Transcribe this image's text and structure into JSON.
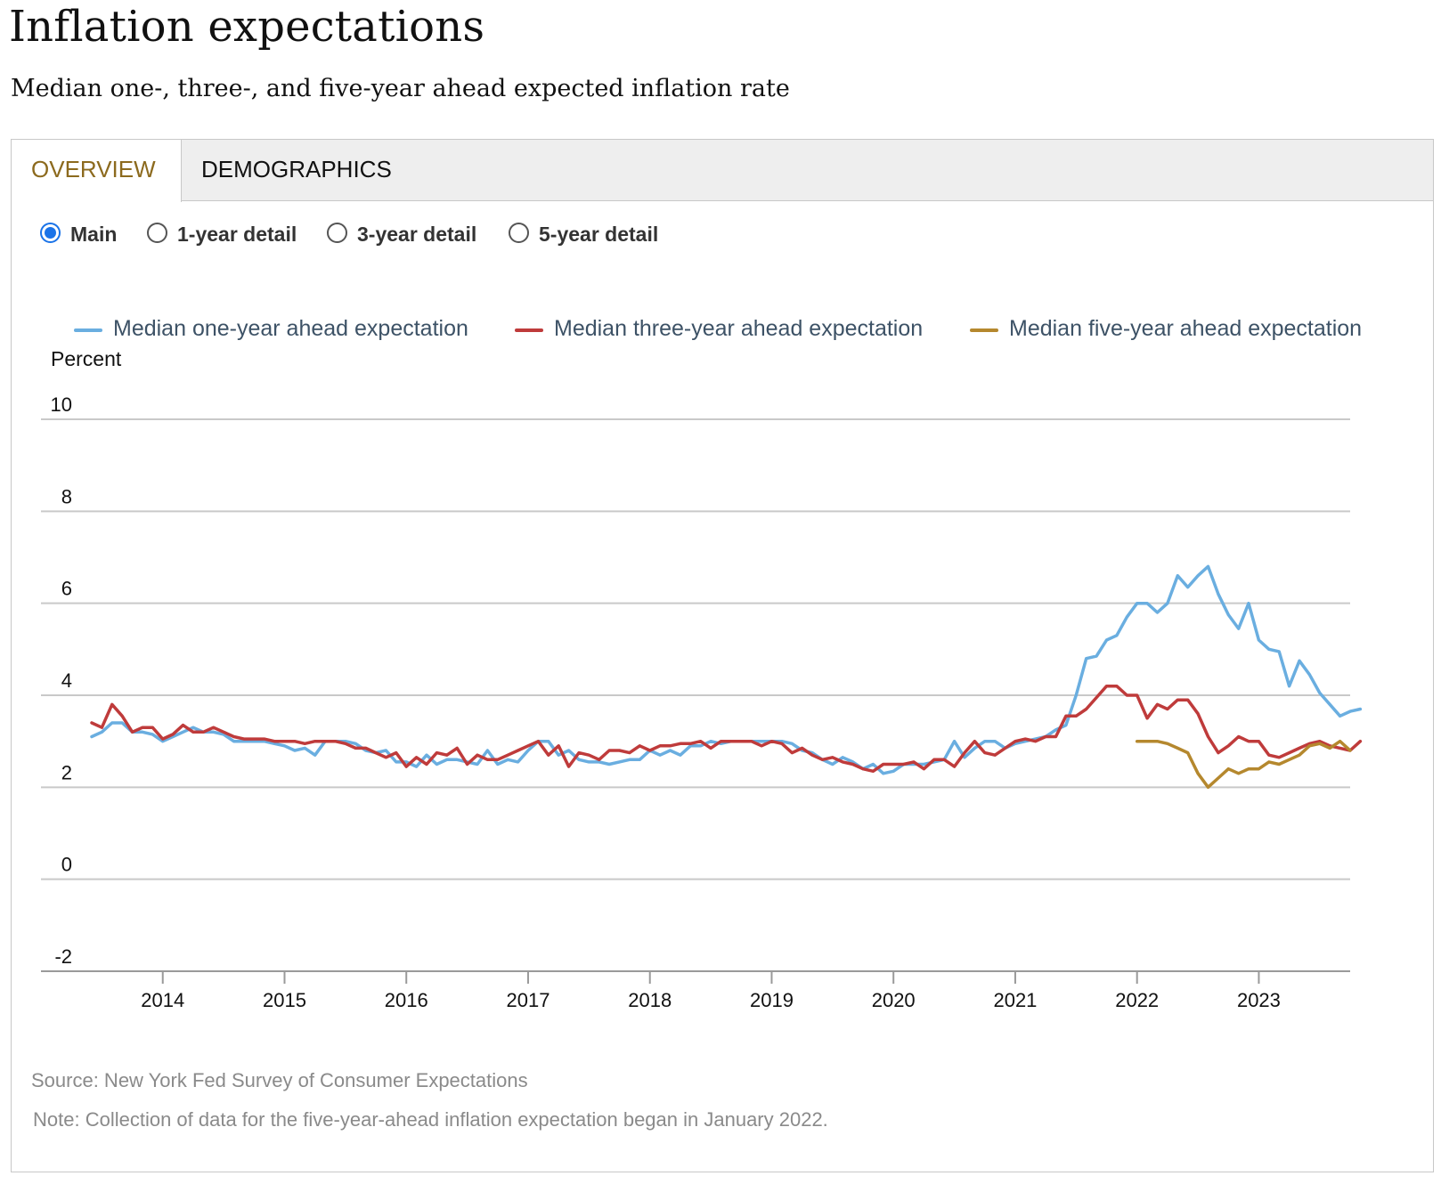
{
  "header": {
    "title": "Inflation expectations",
    "subtitle": "Median one-, three-, and five-year ahead expected inflation rate"
  },
  "tabs": [
    {
      "label": "OVERVIEW",
      "active": true
    },
    {
      "label": "DEMOGRAPHICS",
      "active": false
    }
  ],
  "radios": [
    {
      "label": "Main",
      "checked": true
    },
    {
      "label": "1-year detail",
      "checked": false
    },
    {
      "label": "3-year detail",
      "checked": false
    },
    {
      "label": "5-year detail",
      "checked": false
    }
  ],
  "footer": {
    "source": "Source: New York Fed Survey of Consumer Expectations",
    "note": "Note: Collection of data for the five-year-ahead inflation expectation began in January 2022."
  },
  "chart_data": {
    "type": "line",
    "ylabel": "Percent",
    "ylim": [
      -2,
      10
    ],
    "yticks": [
      -2,
      0,
      2,
      4,
      6,
      8,
      10
    ],
    "xlim": [
      2013.0,
      2023.75
    ],
    "xticks": [
      "2014",
      "2015",
      "2016",
      "2017",
      "2018",
      "2019",
      "2020",
      "2021",
      "2022",
      "2023"
    ],
    "grid": true,
    "legend_position": "top",
    "series": [
      {
        "name": "Median one-year ahead expectation",
        "color": "#6aaee0",
        "start": "2013-06",
        "values": [
          3.1,
          3.2,
          3.4,
          3.4,
          3.2,
          3.2,
          3.15,
          3.0,
          3.1,
          3.2,
          3.3,
          3.2,
          3.2,
          3.15,
          3.0,
          3.0,
          3.0,
          3.0,
          2.95,
          2.9,
          2.8,
          2.85,
          2.7,
          3.0,
          3.0,
          3.0,
          2.95,
          2.8,
          2.75,
          2.8,
          2.55,
          2.55,
          2.45,
          2.7,
          2.5,
          2.6,
          2.6,
          2.55,
          2.5,
          2.8,
          2.5,
          2.6,
          2.55,
          2.8,
          3.0,
          3.0,
          2.7,
          2.8,
          2.6,
          2.55,
          2.55,
          2.5,
          2.55,
          2.6,
          2.6,
          2.8,
          2.7,
          2.8,
          2.7,
          2.9,
          2.9,
          3.0,
          2.95,
          3.0,
          3.0,
          3.0,
          3.0,
          3.0,
          3.0,
          2.95,
          2.8,
          2.75,
          2.6,
          2.5,
          2.65,
          2.55,
          2.4,
          2.5,
          2.3,
          2.35,
          2.5,
          2.5,
          2.5,
          2.55,
          2.6,
          3.0,
          2.65,
          2.85,
          3.0,
          3.0,
          2.85,
          2.95,
          3.0,
          3.05,
          3.1,
          3.25,
          3.35,
          4.0,
          4.8,
          4.85,
          5.2,
          5.3,
          5.7,
          6.0,
          6.0,
          5.8,
          6.0,
          6.6,
          6.35,
          6.6,
          6.8,
          6.2,
          5.75,
          5.45,
          6.0,
          5.2,
          5.0,
          4.95,
          4.2,
          4.75,
          4.45,
          4.05,
          3.8,
          3.55,
          3.65,
          3.7
        ]
      },
      {
        "name": "Median three-year ahead expectation",
        "color": "#bf3b3b",
        "start": "2013-06",
        "values": [
          3.4,
          3.3,
          3.8,
          3.55,
          3.2,
          3.3,
          3.3,
          3.05,
          3.15,
          3.35,
          3.2,
          3.2,
          3.3,
          3.2,
          3.1,
          3.05,
          3.05,
          3.05,
          3.0,
          3.0,
          3.0,
          2.95,
          3.0,
          3.0,
          3.0,
          2.95,
          2.85,
          2.85,
          2.75,
          2.65,
          2.75,
          2.45,
          2.65,
          2.5,
          2.75,
          2.7,
          2.85,
          2.5,
          2.7,
          2.6,
          2.6,
          2.7,
          2.8,
          2.9,
          3.0,
          2.7,
          2.9,
          2.45,
          2.75,
          2.7,
          2.6,
          2.8,
          2.8,
          2.75,
          2.9,
          2.8,
          2.9,
          2.9,
          2.95,
          2.95,
          3.0,
          2.85,
          3.0,
          3.0,
          3.0,
          3.0,
          2.9,
          3.0,
          2.95,
          2.75,
          2.85,
          2.7,
          2.6,
          2.65,
          2.55,
          2.5,
          2.4,
          2.35,
          2.5,
          2.5,
          2.5,
          2.55,
          2.4,
          2.6,
          2.6,
          2.45,
          2.75,
          3.0,
          2.75,
          2.7,
          2.85,
          3.0,
          3.05,
          3.0,
          3.1,
          3.1,
          3.55,
          3.55,
          3.7,
          3.95,
          4.2,
          4.2,
          4.0,
          4.0,
          3.5,
          3.8,
          3.7,
          3.9,
          3.9,
          3.6,
          3.1,
          2.75,
          2.9,
          3.1,
          3.0,
          3.0,
          2.7,
          2.65,
          2.75,
          2.85,
          2.95,
          3.0,
          2.9,
          2.85,
          2.8,
          3.0
        ]
      },
      {
        "name": "Median five-year ahead expectation",
        "color": "#b5882e",
        "start": "2022-01",
        "values": [
          3.0,
          3.0,
          3.0,
          2.95,
          2.85,
          2.75,
          2.3,
          2.0,
          2.2,
          2.4,
          2.3,
          2.4,
          2.4,
          2.55,
          2.5,
          2.6,
          2.7,
          2.9,
          2.95,
          2.85,
          3.0,
          2.8
        ]
      }
    ]
  }
}
